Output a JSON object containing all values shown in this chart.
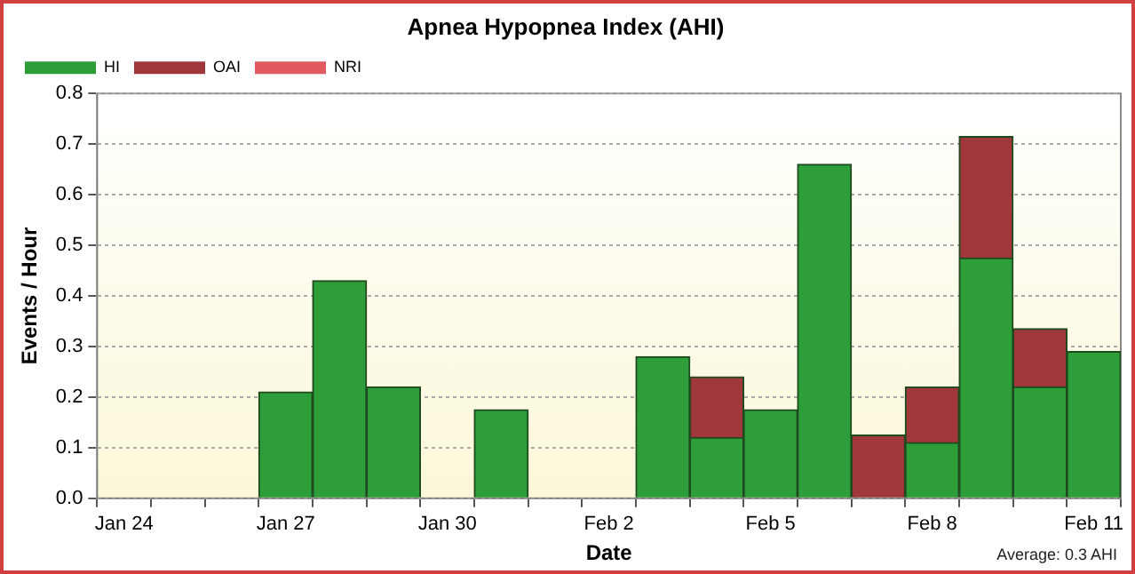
{
  "chart_data": {
    "type": "bar",
    "title": "Apnea Hypopnea Index (AHI)",
    "xlabel": "Date",
    "ylabel": "Events / Hour",
    "categories": [
      "Jan 24",
      null,
      null,
      "Jan 27",
      null,
      null,
      "Jan 30",
      null,
      null,
      "Feb 2",
      null,
      null,
      "Feb 5",
      null,
      null,
      "Feb 8",
      null,
      null,
      "Feb 11"
    ],
    "stacked": true,
    "series": [
      {
        "name": "HI",
        "color": "#2e9e3a",
        "values": [
          null,
          null,
          null,
          0.21,
          0.43,
          0.22,
          null,
          0.175,
          null,
          null,
          0.28,
          0.12,
          0.175,
          0.66,
          null,
          0.11,
          0.475,
          0.22,
          0.29
        ]
      },
      {
        "name": "OAI",
        "color": "#a0373a",
        "values": [
          null,
          null,
          null,
          null,
          null,
          null,
          null,
          null,
          null,
          null,
          null,
          0.12,
          null,
          null,
          0.125,
          0.11,
          0.24,
          0.115,
          null
        ]
      },
      {
        "name": "NRI",
        "color": "#e05a60",
        "values": [
          null,
          null,
          null,
          null,
          null,
          null,
          null,
          null,
          null,
          null,
          null,
          null,
          null,
          null,
          null,
          null,
          null,
          null,
          null
        ]
      }
    ],
    "ylim": [
      0,
      0.8
    ],
    "yticks": [
      {
        "value": 0,
        "label": "0.0"
      },
      0.1,
      0.2,
      0.3,
      0.4,
      0.5,
      0.6,
      0.7,
      0.8
    ],
    "grid": "y",
    "legend": "top left",
    "annotations": [
      "Average: 0.3 AHI"
    ]
  }
}
